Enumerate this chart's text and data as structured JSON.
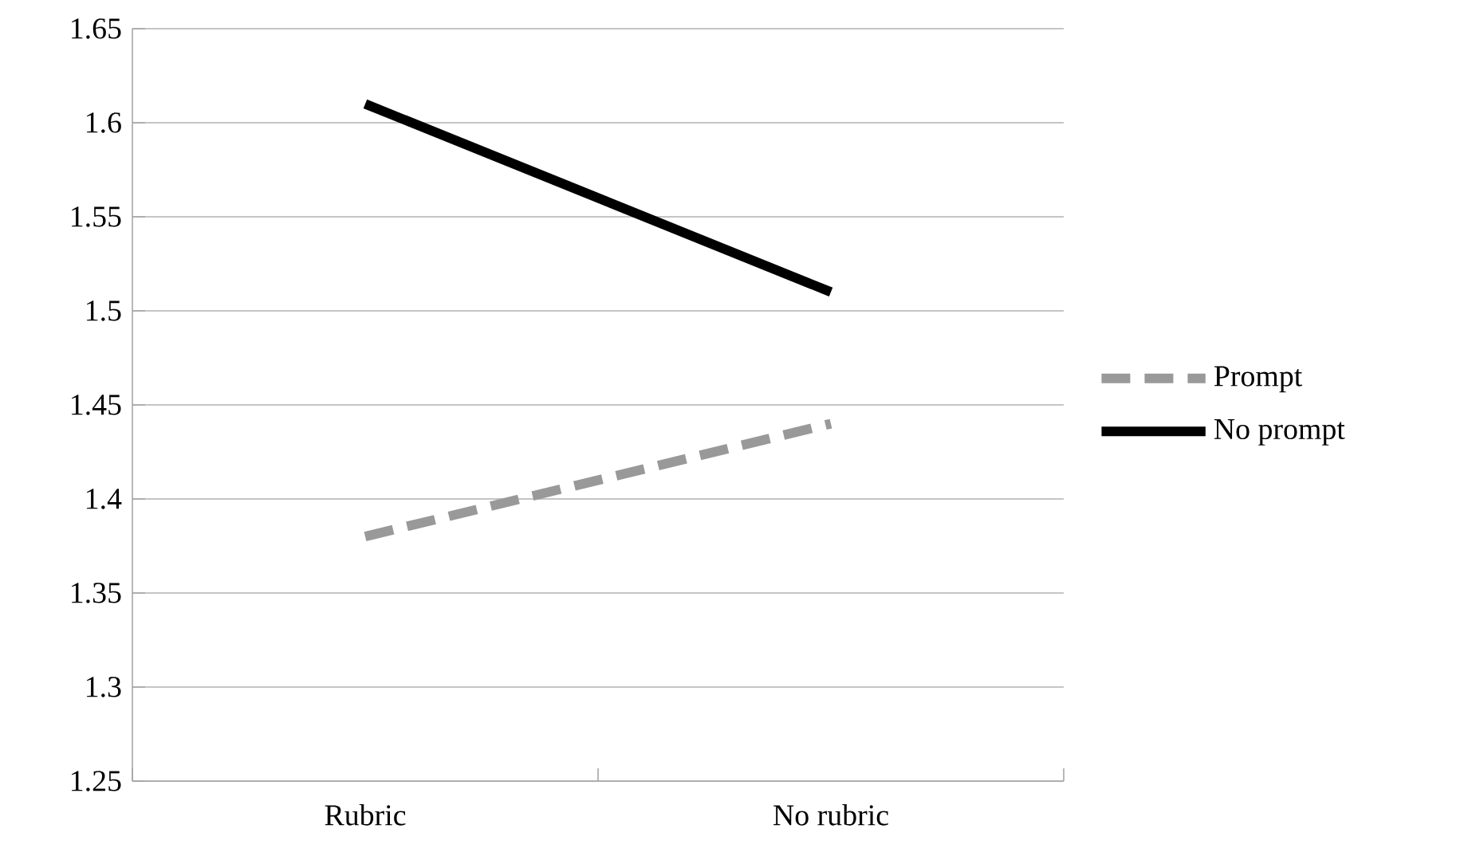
{
  "chart_data": {
    "type": "line",
    "categories": [
      "Rubric",
      "No rubric"
    ],
    "series": [
      {
        "name": "Prompt",
        "color": "#999999",
        "line_style": "dashed",
        "values": [
          1.38,
          1.44
        ]
      },
      {
        "name": "No prompt",
        "color": "#000000",
        "line_style": "solid",
        "values": [
          1.61,
          1.51
        ]
      }
    ],
    "ylim": [
      1.25,
      1.65
    ],
    "yticks": [
      1.25,
      1.3,
      1.35,
      1.4,
      1.45,
      1.5,
      1.55,
      1.6,
      1.65
    ],
    "grid": "y",
    "legend": "right"
  }
}
